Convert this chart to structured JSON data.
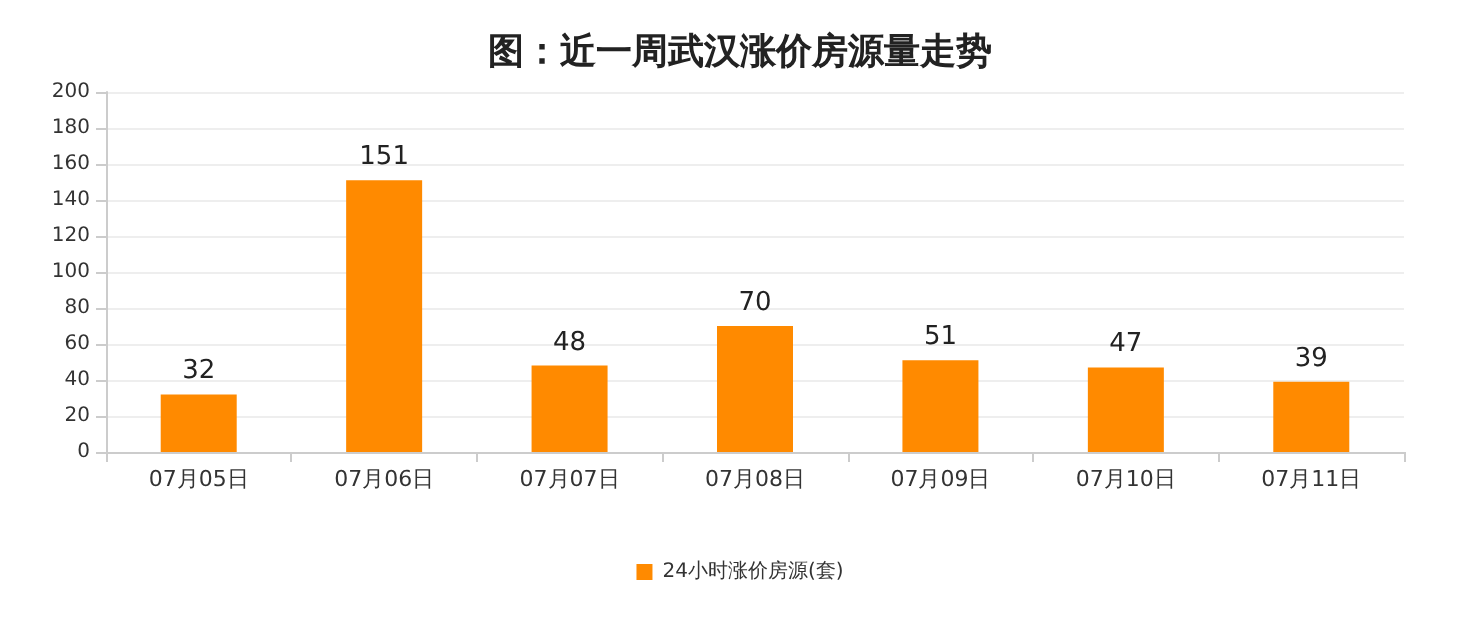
{
  "chart_data": {
    "type": "bar",
    "title": "图：近一周武汉涨价房源量走势",
    "categories": [
      "07月05日",
      "07月06日",
      "07月07日",
      "07月08日",
      "07月09日",
      "07月10日",
      "07月11日"
    ],
    "series": [
      {
        "name": "24小时涨价房源(套)",
        "color": "#ff8a00",
        "values": [
          32,
          151,
          48,
          70,
          51,
          47,
          39
        ]
      }
    ],
    "ylim": [
      0,
      200
    ],
    "yticks": [
      0,
      20,
      40,
      60,
      80,
      100,
      120,
      140,
      160,
      180,
      200
    ],
    "grid": "y",
    "legend": "bottom",
    "data_labels": true
  }
}
